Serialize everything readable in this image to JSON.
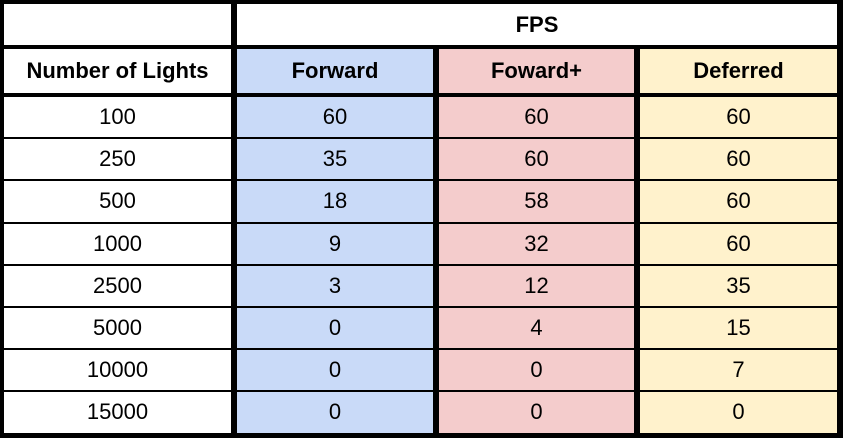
{
  "table": {
    "group_header": "FPS",
    "columns": [
      "Number of Lights",
      "Forward",
      "Foward+",
      "Deferred"
    ],
    "rows": [
      [
        100,
        60,
        60,
        60
      ],
      [
        250,
        35,
        60,
        60
      ],
      [
        500,
        18,
        58,
        60
      ],
      [
        1000,
        9,
        32,
        60
      ],
      [
        2500,
        3,
        12,
        35
      ],
      [
        5000,
        0,
        4,
        15
      ],
      [
        10000,
        0,
        0,
        7
      ],
      [
        15000,
        0,
        0,
        0
      ]
    ]
  }
}
